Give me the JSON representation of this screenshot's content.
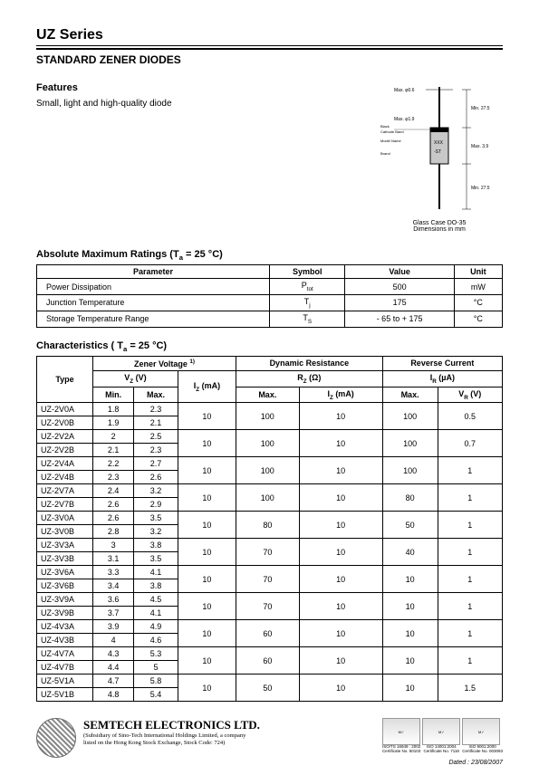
{
  "header": {
    "series": "UZ Series",
    "subtitle": "STANDARD ZENER DIODES"
  },
  "features": {
    "heading": "Features",
    "body": "Small, light and high-quality diode"
  },
  "diagram": {
    "caption_line1": "Glass Case DO-35",
    "caption_line2": "Dimensions in mm",
    "labels": {
      "top_dia": "Max. φ0.6",
      "bulb_dia": "Max. φ1.9",
      "l1": "Min. 27.5",
      "l2": "Max. 3.9",
      "l3": "Min. 27.5",
      "black": "Black",
      "cathode": "Cathode Band",
      "model": "Model Name",
      "brand": "Brand"
    }
  },
  "abs_max": {
    "heading": "Absolute Maximum Ratings (Tₐ = 25 °C)",
    "columns": [
      "Parameter",
      "Symbol",
      "Value",
      "Unit"
    ],
    "rows": [
      {
        "param": "Power Dissipation",
        "symbol": "P_tot",
        "value": "500",
        "unit": "mW"
      },
      {
        "param": "Junction Temperature",
        "symbol": "T_j",
        "value": "175",
        "unit": "°C"
      },
      {
        "param": "Storage Temperature Range",
        "symbol": "T_S",
        "value": "- 65 to + 175",
        "unit": "°C"
      }
    ]
  },
  "characteristics": {
    "heading": "Characteristics ( Tₐ = 25 °C)",
    "groups": {
      "zener": "Zener Voltage",
      "zener_sup": "1)",
      "dyn": "Dynamic Resistance",
      "rev": "Reverse Current"
    },
    "subcols": {
      "vz": "V_Z (V)",
      "iz": "I_Z (mA)",
      "rz": "R_Z (Ω)",
      "ir": "I_R (µA)",
      "min": "Min.",
      "max": "Max.",
      "vr": "V_R (V)",
      "type": "Type"
    },
    "rows": [
      {
        "type": "UZ-2V0A",
        "min": "1.8",
        "max": "2.3",
        "iz": "10",
        "rz_max": "100",
        "rz_iz": "10",
        "ir_max": "100",
        "vr": "0.5"
      },
      {
        "type": "UZ-2V0B",
        "min": "1.9",
        "max": "2.1"
      },
      {
        "type": "UZ-2V2A",
        "min": "2",
        "max": "2.5",
        "iz": "10",
        "rz_max": "100",
        "rz_iz": "10",
        "ir_max": "100",
        "vr": "0.7"
      },
      {
        "type": "UZ-2V2B",
        "min": "2.1",
        "max": "2.3"
      },
      {
        "type": "UZ-2V4A",
        "min": "2.2",
        "max": "2.7",
        "iz": "10",
        "rz_max": "100",
        "rz_iz": "10",
        "ir_max": "100",
        "vr": "1"
      },
      {
        "type": "UZ-2V4B",
        "min": "2.3",
        "max": "2.6"
      },
      {
        "type": "UZ-2V7A",
        "min": "2.4",
        "max": "3.2",
        "iz": "10",
        "rz_max": "100",
        "rz_iz": "10",
        "ir_max": "80",
        "vr": "1"
      },
      {
        "type": "UZ-2V7B",
        "min": "2.6",
        "max": "2.9"
      },
      {
        "type": "UZ-3V0A",
        "min": "2.6",
        "max": "3.5",
        "iz": "10",
        "rz_max": "80",
        "rz_iz": "10",
        "ir_max": "50",
        "vr": "1"
      },
      {
        "type": "UZ-3V0B",
        "min": "2.8",
        "max": "3.2"
      },
      {
        "type": "UZ-3V3A",
        "min": "3",
        "max": "3.8",
        "iz": "10",
        "rz_max": "70",
        "rz_iz": "10",
        "ir_max": "40",
        "vr": "1"
      },
      {
        "type": "UZ-3V3B",
        "min": "3.1",
        "max": "3.5"
      },
      {
        "type": "UZ-3V6A",
        "min": "3.3",
        "max": "4.1",
        "iz": "10",
        "rz_max": "70",
        "rz_iz": "10",
        "ir_max": "10",
        "vr": "1"
      },
      {
        "type": "UZ-3V6B",
        "min": "3.4",
        "max": "3.8"
      },
      {
        "type": "UZ-3V9A",
        "min": "3.6",
        "max": "4.5",
        "iz": "10",
        "rz_max": "70",
        "rz_iz": "10",
        "ir_max": "10",
        "vr": "1"
      },
      {
        "type": "UZ-3V9B",
        "min": "3.7",
        "max": "4.1"
      },
      {
        "type": "UZ-4V3A",
        "min": "3.9",
        "max": "4.9",
        "iz": "10",
        "rz_max": "60",
        "rz_iz": "10",
        "ir_max": "10",
        "vr": "1"
      },
      {
        "type": "UZ-4V3B",
        "min": "4",
        "max": "4.6"
      },
      {
        "type": "UZ-4V7A",
        "min": "4.3",
        "max": "5.3",
        "iz": "10",
        "rz_max": "60",
        "rz_iz": "10",
        "ir_max": "10",
        "vr": "1"
      },
      {
        "type": "UZ-4V7B",
        "min": "4.4",
        "max": "5"
      },
      {
        "type": "UZ-5V1A",
        "min": "4.7",
        "max": "5.8",
        "iz": "10",
        "rz_max": "50",
        "rz_iz": "10",
        "ir_max": "10",
        "vr": "1.5"
      },
      {
        "type": "UZ-5V1B",
        "min": "4.8",
        "max": "5.4"
      }
    ]
  },
  "footer": {
    "company": "SEMTECH ELECTRONICS LTD.",
    "sub1": "(Subsidiary of Sino-Tech International Holdings Limited, a company",
    "sub2": "listed on the Hong Kong Stock Exchange, Stock Code: 724)",
    "certs": [
      {
        "label": "ISO/TS 16949 : 2002",
        "cert": "Certificate No. 50103"
      },
      {
        "label": "ISO 14001:2004",
        "cert": "Certificate No. 7118"
      },
      {
        "label": "ISO 9001:2000",
        "cert": "Certificate No. 003093"
      }
    ],
    "dated": "Dated : 23/08/2007"
  },
  "colors": {
    "text": "#000000",
    "bg": "#ffffff",
    "border": "#000000"
  }
}
